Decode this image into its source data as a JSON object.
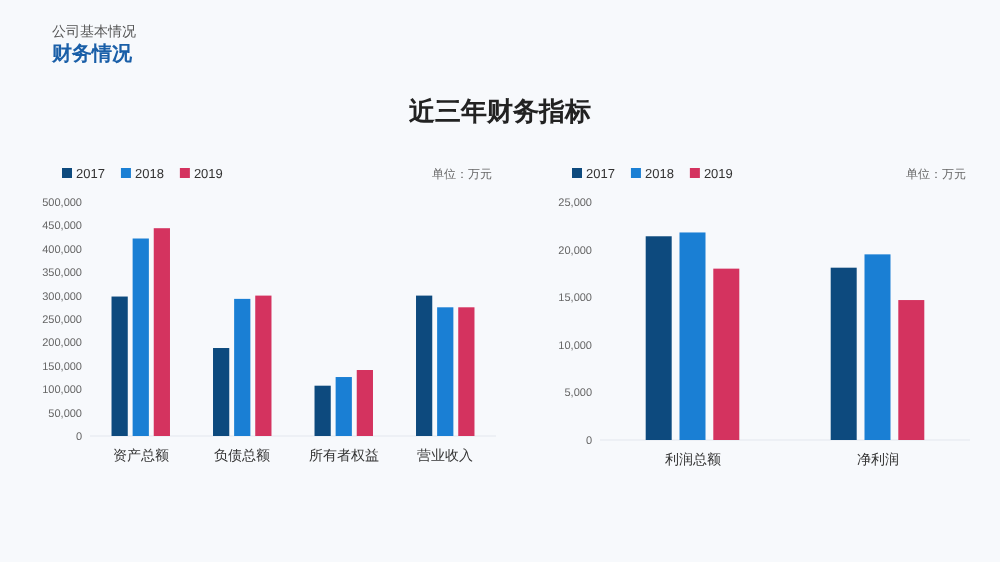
{
  "chart_data": [
    {
      "type": "bar",
      "title": "近三年财务指标",
      "annotations": [
        "公司基本情况",
        "财务情况",
        "单位：万元"
      ],
      "categories": [
        "资产总额",
        "负债总额",
        "所有者权益",
        "营业收入"
      ],
      "series": [
        {
          "name": "2017",
          "color": "#0d4a7e",
          "values": [
            298000,
            188000,
            107500,
            300000
          ]
        },
        {
          "name": "2018",
          "color": "#1a7fd4",
          "values": [
            422000,
            293000,
            126000,
            275000
          ]
        },
        {
          "name": "2019",
          "color": "#d4335f",
          "values": [
            444000,
            300000,
            141000,
            275000
          ]
        }
      ],
      "ylim": [
        0,
        500000
      ],
      "yticks": [
        0,
        {
          "value": 50000,
          "label": "50,000"
        },
        {
          "value": 100000,
          "label": "100,000"
        },
        {
          "value": 150000,
          "label": "150,000"
        },
        {
          "value": 200000,
          "label": "200,000"
        },
        {
          "value": 250000,
          "label": "250,000"
        },
        {
          "value": 300000,
          "label": "300,000"
        },
        {
          "value": 350000,
          "label": "350,000"
        },
        {
          "value": 400000,
          "label": "400,000"
        },
        {
          "value": 450000,
          "label": "450,000"
        },
        {
          "value": 500000,
          "label": "500,000"
        }
      ],
      "legend": "top left"
    },
    {
      "type": "bar",
      "annotations": [
        "单位：万元"
      ],
      "categories": [
        "利润总额",
        "净利润"
      ],
      "series": [
        {
          "name": "2017",
          "color": "#0d4a7e",
          "values": [
            21400,
            18100
          ]
        },
        {
          "name": "2018",
          "color": "#1a7fd4",
          "values": [
            21800,
            19500
          ]
        },
        {
          "name": "2019",
          "color": "#d4335f",
          "values": [
            18000,
            14700
          ]
        }
      ],
      "ylim": [
        0,
        25000
      ],
      "yticks": [
        0,
        {
          "value": 5000,
          "label": "5,000"
        },
        {
          "value": 10000,
          "label": "10,000"
        },
        {
          "value": 15000,
          "label": "15,000"
        },
        {
          "value": 20000,
          "label": "20,000"
        },
        {
          "value": 25000,
          "label": "25,000"
        }
      ],
      "legend": "top left"
    }
  ]
}
